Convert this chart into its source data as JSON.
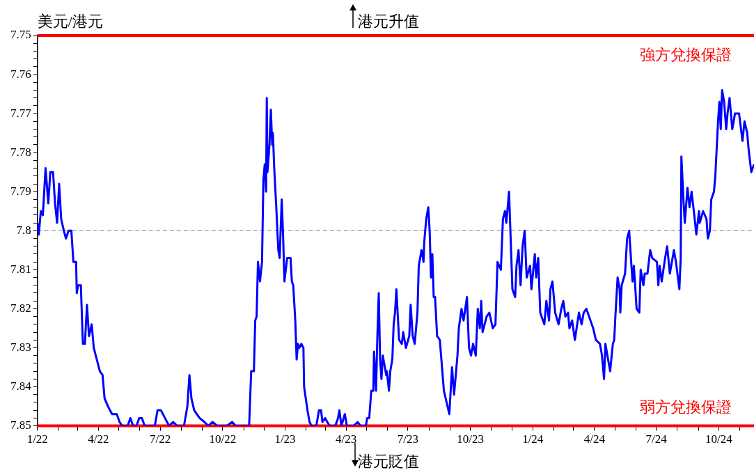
{
  "chart_data": {
    "type": "line",
    "ylabel": "美元/港元",
    "annotations": [
      "港元升值",
      "港元貶值"
    ],
    "marker": "none",
    "line_style": "solid",
    "xlim": [
      "2022-01-01",
      "2024-11-22"
    ],
    "xticks": [
      {
        "value": "2022-01-01",
        "label": "1/22"
      },
      {
        "value": "2022-02-01",
        "label": null
      },
      {
        "value": "2022-03-01",
        "label": null
      },
      {
        "value": "2022-04-01",
        "label": "4/22"
      },
      {
        "value": "2022-05-01",
        "label": null
      },
      {
        "value": "2022-06-01",
        "label": null
      },
      {
        "value": "2022-07-01",
        "label": "7/22"
      },
      {
        "value": "2022-08-01",
        "label": null
      },
      {
        "value": "2022-09-01",
        "label": null
      },
      {
        "value": "2022-10-01",
        "label": "10/22"
      },
      {
        "value": "2022-11-01",
        "label": null
      },
      {
        "value": "2022-12-01",
        "label": null
      },
      {
        "value": "2023-01-01",
        "label": "1/23"
      },
      {
        "value": "2023-02-01",
        "label": null
      },
      {
        "value": "2023-03-01",
        "label": null
      },
      {
        "value": "2023-04-01",
        "label": "4/23"
      },
      {
        "value": "2023-05-01",
        "label": null
      },
      {
        "value": "2023-06-01",
        "label": null
      },
      {
        "value": "2023-07-01",
        "label": "7/23"
      },
      {
        "value": "2023-08-01",
        "label": null
      },
      {
        "value": "2023-09-01",
        "label": null
      },
      {
        "value": "2023-10-01",
        "label": "10/23"
      },
      {
        "value": "2023-11-01",
        "label": null
      },
      {
        "value": "2023-12-01",
        "label": null
      },
      {
        "value": "2024-01-01",
        "label": "1/24"
      },
      {
        "value": "2024-02-01",
        "label": null
      },
      {
        "value": "2024-03-01",
        "label": null
      },
      {
        "value": "2024-04-01",
        "label": "4/24"
      },
      {
        "value": "2024-05-01",
        "label": null
      },
      {
        "value": "2024-06-01",
        "label": null
      },
      {
        "value": "2024-07-01",
        "label": "7/24"
      },
      {
        "value": "2024-08-01",
        "label": null
      },
      {
        "value": "2024-09-01",
        "label": null
      },
      {
        "value": "2024-10-01",
        "label": "10/24"
      },
      {
        "value": "2024-11-01",
        "label": null
      }
    ],
    "ylim": [
      7.85,
      7.75
    ],
    "yticks": [
      7.75,
      {
        "value": 7.752,
        "label": null
      },
      {
        "value": 7.754,
        "label": null
      },
      {
        "value": 7.756,
        "label": null
      },
      {
        "value": 7.758,
        "label": null
      },
      7.76,
      {
        "value": 7.762,
        "label": null
      },
      {
        "value": 7.764,
        "label": null
      },
      {
        "value": 7.766,
        "label": null
      },
      {
        "value": 7.768,
        "label": null
      },
      7.77,
      {
        "value": 7.772,
        "label": null
      },
      {
        "value": 7.774,
        "label": null
      },
      {
        "value": 7.776,
        "label": null
      },
      {
        "value": 7.778,
        "label": null
      },
      7.78,
      {
        "value": 7.782,
        "label": null
      },
      {
        "value": 7.784,
        "label": null
      },
      {
        "value": 7.786,
        "label": null
      },
      {
        "value": 7.788,
        "label": null
      },
      7.79,
      {
        "value": 7.792,
        "label": null
      },
      {
        "value": 7.794,
        "label": null
      },
      {
        "value": 7.796,
        "label": null
      },
      {
        "value": 7.798,
        "label": null
      },
      7.8,
      {
        "value": 7.802,
        "label": null
      },
      {
        "value": 7.804,
        "label": null
      },
      {
        "value": 7.806,
        "label": null
      },
      {
        "value": 7.808,
        "label": null
      },
      7.81,
      {
        "value": 7.812,
        "label": null
      },
      {
        "value": 7.814,
        "label": null
      },
      {
        "value": 7.816,
        "label": null
      },
      {
        "value": 7.818,
        "label": null
      },
      7.82,
      {
        "value": 7.822,
        "label": null
      },
      {
        "value": 7.824,
        "label": null
      },
      {
        "value": 7.826,
        "label": null
      },
      {
        "value": 7.828,
        "label": null
      },
      7.83,
      {
        "value": 7.832,
        "label": null
      },
      {
        "value": 7.834,
        "label": null
      },
      {
        "value": 7.836,
        "label": null
      },
      {
        "value": 7.838,
        "label": null
      },
      7.84,
      {
        "value": 7.842,
        "label": null
      },
      {
        "value": 7.844,
        "label": null
      },
      {
        "value": 7.846,
        "label": null
      },
      {
        "value": 7.848,
        "label": null
      },
      7.85
    ],
    "ref_lines": [
      {
        "axis": "y",
        "value": 7.75,
        "label": "強方兌換保證",
        "color": "#ff0000",
        "line_style": "solid"
      },
      {
        "axis": "y",
        "value": 7.85,
        "label": "弱方兌換保證",
        "color": "#ff0000",
        "line_style": "solid"
      },
      {
        "axis": "y",
        "value": 7.8,
        "color": "#808080",
        "line_style": "dashed"
      }
    ],
    "series": [
      {
        "color": "#0000ff",
        "x": [
          "2022-01-01",
          "2022-01-03",
          "2022-01-06",
          "2022-01-09",
          "2022-01-13",
          "2022-01-17",
          "2022-01-20",
          "2022-01-24",
          "2022-01-27",
          "2022-01-30",
          "2022-02-02",
          "2022-02-05",
          "2022-02-09",
          "2022-02-12",
          "2022-02-16",
          "2022-02-20",
          "2022-02-23",
          "2022-02-27",
          "2022-02-28",
          "2022-03-02",
          "2022-03-06",
          "2022-03-09",
          "2022-03-12",
          "2022-03-15",
          "2022-03-18",
          "2022-03-22",
          "2022-03-25",
          "2022-03-31",
          "2022-04-03",
          "2022-04-07",
          "2022-04-10",
          "2022-04-15",
          "2022-04-21",
          "2022-04-28",
          "2022-05-02",
          "2022-05-06",
          "2022-05-14",
          "2022-05-18",
          "2022-05-22",
          "2022-05-27",
          "2022-05-31",
          "2022-06-04",
          "2022-06-08",
          "2022-06-23",
          "2022-06-27",
          "2022-07-02",
          "2022-07-08",
          "2022-07-14",
          "2022-07-20",
          "2022-07-26",
          "2022-08-05",
          "2022-08-10",
          "2022-08-13",
          "2022-08-16",
          "2022-08-20",
          "2022-08-24",
          "2022-08-28",
          "2022-09-04",
          "2022-09-10",
          "2022-09-16",
          "2022-09-23",
          "2022-10-07",
          "2022-10-15",
          "2022-10-20",
          "2022-11-09",
          "2022-11-12",
          "2022-11-16",
          "2022-11-18",
          "2022-11-20",
          "2022-11-22",
          "2022-11-25",
          "2022-11-28",
          "2022-11-30",
          "2022-12-02",
          "2022-12-04",
          "2022-12-05",
          "2022-12-06",
          "2022-12-09",
          "2022-12-11",
          "2022-12-13",
          "2022-12-14",
          "2022-12-16",
          "2022-12-19",
          "2022-12-22",
          "2022-12-24",
          "2022-12-27",
          "2022-12-29",
          "2022-12-31",
          "2023-01-04",
          "2023-01-09",
          "2023-01-11",
          "2023-01-13",
          "2023-01-16",
          "2023-01-18",
          "2023-01-20",
          "2023-01-22",
          "2023-01-25",
          "2023-01-28",
          "2023-01-29",
          "2023-02-03",
          "2023-02-06",
          "2023-02-09",
          "2023-02-16",
          "2023-02-20",
          "2023-02-23",
          "2023-02-25",
          "2023-03-01",
          "2023-03-04",
          "2023-03-08",
          "2023-03-16",
          "2023-03-20",
          "2023-03-22",
          "2023-03-25",
          "2023-03-30",
          "2023-04-02",
          "2023-04-12",
          "2023-04-18",
          "2023-04-22",
          "2023-04-30",
          "2023-05-02",
          "2023-05-05",
          "2023-05-08",
          "2023-05-11",
          "2023-05-12",
          "2023-05-15",
          "2023-05-17",
          "2023-05-19",
          "2023-05-21",
          "2023-05-23",
          "2023-05-25",
          "2023-05-27",
          "2023-05-30",
          "2023-05-31",
          "2023-06-03",
          "2023-06-05",
          "2023-06-08",
          "2023-06-10",
          "2023-06-12",
          "2023-06-14",
          "2023-06-18",
          "2023-06-22",
          "2023-06-24",
          "2023-06-28",
          "2023-07-03",
          "2023-07-05",
          "2023-07-08",
          "2023-07-11",
          "2023-07-15",
          "2023-07-17",
          "2023-07-21",
          "2023-07-24",
          "2023-07-25",
          "2023-07-28",
          "2023-07-31",
          "2023-08-02",
          "2023-08-04",
          "2023-08-06",
          "2023-08-08",
          "2023-08-10",
          "2023-08-13",
          "2023-08-17",
          "2023-08-23",
          "2023-08-27",
          "2023-08-31",
          "2023-09-04",
          "2023-09-07",
          "2023-09-12",
          "2023-09-14",
          "2023-09-18",
          "2023-09-21",
          "2023-09-26",
          "2023-09-29",
          "2023-10-02",
          "2023-10-05",
          "2023-10-09",
          "2023-10-12",
          "2023-10-15",
          "2023-10-17",
          "2023-10-19",
          "2023-10-25",
          "2023-10-29",
          "2023-11-03",
          "2023-11-07",
          "2023-11-10",
          "2023-11-15",
          "2023-11-18",
          "2023-11-21",
          "2023-11-23",
          "2023-11-27",
          "2023-12-02",
          "2023-12-06",
          "2023-12-08",
          "2023-12-11",
          "2023-12-14",
          "2023-12-17",
          "2023-12-20",
          "2023-12-23",
          "2023-12-28",
          "2023-12-30",
          "2024-01-04",
          "2024-01-06",
          "2024-01-09",
          "2024-01-12",
          "2024-01-18",
          "2024-01-21",
          "2024-01-25",
          "2024-01-27",
          "2024-01-30",
          "2024-02-03",
          "2024-02-08",
          "2024-02-12",
          "2024-02-15",
          "2024-02-18",
          "2024-02-22",
          "2024-02-24",
          "2024-02-28",
          "2024-03-03",
          "2024-03-09",
          "2024-03-13",
          "2024-03-16",
          "2024-03-20",
          "2024-03-24",
          "2024-03-30",
          "2024-04-03",
          "2024-04-09",
          "2024-04-12",
          "2024-04-15",
          "2024-04-17",
          "2024-04-20",
          "2024-04-24",
          "2024-04-28",
          "2024-04-30",
          "2024-05-02",
          "2024-05-05",
          "2024-05-08",
          "2024-05-09",
          "2024-05-11",
          "2024-05-16",
          "2024-05-19",
          "2024-05-22",
          "2024-05-25",
          "2024-05-27",
          "2024-05-29",
          "2024-06-02",
          "2024-06-06",
          "2024-06-08",
          "2024-06-12",
          "2024-06-14",
          "2024-06-18",
          "2024-06-22",
          "2024-06-25",
          "2024-07-02",
          "2024-07-04",
          "2024-07-06",
          "2024-07-09",
          "2024-07-14",
          "2024-07-17",
          "2024-07-21",
          "2024-07-25",
          "2024-07-27",
          "2024-07-30",
          "2024-08-04",
          "2024-08-06",
          "2024-08-07",
          "2024-08-10",
          "2024-08-12",
          "2024-08-16",
          "2024-08-19",
          "2024-08-22",
          "2024-08-26",
          "2024-08-29",
          "2024-09-02",
          "2024-09-03",
          "2024-09-08",
          "2024-09-13",
          "2024-09-15",
          "2024-09-18",
          "2024-09-20",
          "2024-09-24",
          "2024-09-26",
          "2024-09-30",
          "2024-10-02",
          "2024-10-04",
          "2024-10-06",
          "2024-10-09",
          "2024-10-12",
          "2024-10-14",
          "2024-10-17",
          "2024-10-21",
          "2024-10-25",
          "2024-10-31",
          "2024-11-05",
          "2024-11-08",
          "2024-11-12",
          "2024-11-14",
          "2024-11-18",
          "2024-11-22"
        ],
        "values": [
          7.798,
          7.801,
          7.795,
          7.796,
          7.784,
          7.793,
          7.785,
          7.785,
          7.793,
          7.798,
          7.788,
          7.797,
          7.8,
          7.802,
          7.8,
          7.8,
          7.808,
          7.808,
          7.816,
          7.814,
          7.814,
          7.829,
          7.829,
          7.819,
          7.827,
          7.824,
          7.83,
          7.834,
          7.836,
          7.837,
          7.843,
          7.845,
          7.847,
          7.847,
          7.849,
          7.85,
          7.85,
          7.848,
          7.85,
          7.85,
          7.848,
          7.848,
          7.85,
          7.85,
          7.846,
          7.846,
          7.848,
          7.85,
          7.849,
          7.85,
          7.85,
          7.845,
          7.837,
          7.843,
          7.846,
          7.847,
          7.848,
          7.849,
          7.85,
          7.849,
          7.85,
          7.85,
          7.849,
          7.85,
          7.85,
          7.836,
          7.836,
          7.823,
          7.822,
          7.808,
          7.813,
          7.808,
          7.787,
          7.783,
          7.79,
          7.766,
          7.785,
          7.778,
          7.769,
          7.778,
          7.775,
          7.784,
          7.794,
          7.805,
          7.807,
          7.792,
          7.801,
          7.813,
          7.807,
          7.807,
          7.813,
          7.814,
          7.823,
          7.833,
          7.829,
          7.83,
          7.829,
          7.83,
          7.84,
          7.846,
          7.849,
          7.85,
          7.85,
          7.846,
          7.846,
          7.849,
          7.848,
          7.849,
          7.85,
          7.85,
          7.848,
          7.846,
          7.85,
          7.847,
          7.85,
          7.85,
          7.849,
          7.85,
          7.85,
          7.848,
          7.848,
          7.841,
          7.841,
          7.831,
          7.841,
          7.827,
          7.816,
          7.833,
          7.838,
          7.832,
          7.834,
          7.837,
          7.836,
          7.841,
          7.836,
          7.833,
          7.824,
          7.821,
          7.815,
          7.828,
          7.829,
          7.826,
          7.83,
          7.827,
          7.819,
          7.827,
          7.829,
          7.821,
          7.809,
          7.805,
          7.808,
          7.803,
          7.797,
          7.794,
          7.8,
          7.812,
          7.806,
          7.817,
          7.817,
          7.827,
          7.828,
          7.841,
          7.844,
          7.847,
          7.835,
          7.842,
          7.832,
          7.825,
          7.82,
          7.823,
          7.817,
          7.83,
          7.832,
          7.829,
          7.832,
          7.82,
          7.825,
          7.818,
          7.826,
          7.822,
          7.821,
          7.825,
          7.824,
          7.808,
          7.81,
          7.797,
          7.795,
          7.798,
          7.79,
          7.815,
          7.817,
          7.809,
          7.805,
          7.814,
          7.804,
          7.8,
          7.812,
          7.809,
          7.815,
          7.806,
          7.812,
          7.807,
          7.821,
          7.824,
          7.818,
          7.823,
          7.815,
          7.813,
          7.821,
          7.824,
          7.82,
          7.818,
          7.822,
          7.821,
          7.825,
          7.823,
          7.828,
          7.821,
          7.824,
          7.821,
          7.82,
          7.822,
          7.825,
          7.828,
          7.829,
          7.832,
          7.838,
          7.829,
          7.832,
          7.836,
          7.829,
          7.828,
          7.821,
          7.812,
          7.815,
          7.821,
          7.814,
          7.811,
          7.802,
          7.8,
          7.808,
          7.813,
          7.809,
          7.82,
          7.821,
          7.81,
          7.814,
          7.811,
          7.811,
          7.805,
          7.807,
          7.808,
          7.814,
          7.809,
          7.813,
          7.807,
          7.804,
          7.811,
          7.807,
          7.805,
          7.808,
          7.815,
          7.807,
          7.781,
          7.792,
          7.798,
          7.789,
          7.794,
          7.79,
          7.796,
          7.801,
          7.795,
          7.798,
          7.795,
          7.797,
          7.802,
          7.8,
          7.792,
          7.79,
          7.786,
          7.772,
          7.767,
          7.774,
          7.764,
          7.767,
          7.774,
          7.77,
          7.766,
          7.774,
          7.77,
          7.77,
          7.777,
          7.772,
          7.775,
          7.779,
          7.785,
          7.783
        ]
      }
    ]
  }
}
